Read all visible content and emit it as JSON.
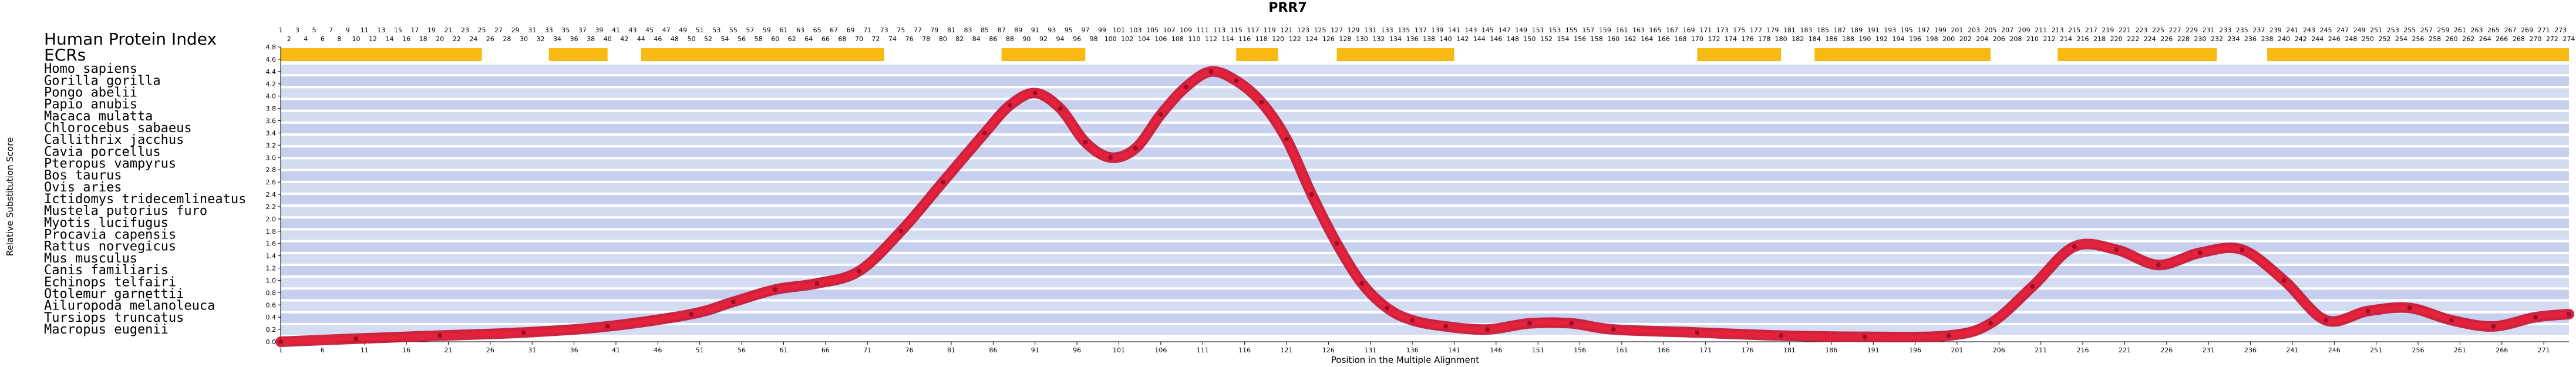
{
  "chart_data": {
    "type": "line",
    "title": "PRR7",
    "xlabel": "Position in the Multiple Alignment",
    "ylabel": "Relative Substitution Score",
    "xlim": [
      1,
      274
    ],
    "ylim": [
      0,
      4.8
    ],
    "y_ticks": [
      "0.0",
      "0.2",
      "0.4",
      "0.6",
      "0.8",
      "1.0",
      "1.2",
      "1.4",
      "1.6",
      "1.8",
      "2.0",
      "2.2",
      "2.4",
      "2.6",
      "2.8",
      "3.0",
      "3.2",
      "3.4",
      "3.6",
      "3.8",
      "4.0",
      "4.2",
      "4.4",
      "4.6",
      "4.8"
    ],
    "x_ticks": [
      1,
      6,
      11,
      16,
      21,
      26,
      31,
      36,
      41,
      46,
      51,
      56,
      61,
      66,
      71,
      76,
      81,
      86,
      91,
      96,
      101,
      106,
      111,
      116,
      121,
      126,
      131,
      136,
      141,
      146,
      151,
      156,
      161,
      166,
      171,
      176,
      181,
      186,
      191,
      196,
      201,
      206,
      211,
      216,
      221,
      226,
      231,
      236,
      241,
      246,
      251,
      256,
      261,
      266,
      271
    ],
    "header_labels": {
      "index": "Human Protein Index",
      "ecrs": "ECRs"
    },
    "species": [
      "Homo sapiens",
      "Gorilla gorilla",
      "Pongo abelii",
      "Papio anubis",
      "Macaca mulatta",
      "Chlorocebus sabaeus",
      "Callithrix jacchus",
      "Cavia porcellus",
      "Pteropus vampyrus",
      "Bos taurus",
      "Ovis aries",
      "Ictidomys tridecemlineatus",
      "Mustela putorius furo",
      "Myotis lucifugus",
      "Procavia capensis",
      "Rattus norvegicus",
      "Mus musculus",
      "Canis familiaris",
      "Echinops telfairi",
      "Otolemur garnettii",
      "Ailuropoda melanoleuca",
      "Tursiops truncatus",
      "Macropus eugenii"
    ],
    "ecr_regions": [
      [
        1,
        25
      ],
      [
        33,
        40
      ],
      [
        44,
        73
      ],
      [
        87,
        97
      ],
      [
        115,
        120
      ],
      [
        127,
        141
      ],
      [
        170,
        180
      ],
      [
        184,
        205
      ],
      [
        213,
        232
      ],
      [
        238,
        274
      ]
    ],
    "series": [
      {
        "name": "",
        "x": [
          1,
          10,
          20,
          30,
          40,
          50,
          55,
          60,
          65,
          70,
          75,
          80,
          85,
          88,
          91,
          94,
          97,
          100,
          103,
          106,
          109,
          112,
          115,
          118,
          121,
          124,
          127,
          130,
          133,
          136,
          140,
          145,
          150,
          155,
          160,
          170,
          180,
          190,
          200,
          205,
          210,
          215,
          220,
          225,
          230,
          235,
          240,
          245,
          250,
          255,
          260,
          265,
          270,
          274
        ],
        "y": [
          0.0,
          0.05,
          0.1,
          0.15,
          0.25,
          0.45,
          0.65,
          0.85,
          0.95,
          1.15,
          1.8,
          2.6,
          3.4,
          3.85,
          4.05,
          3.8,
          3.25,
          3.0,
          3.15,
          3.7,
          4.15,
          4.4,
          4.25,
          3.9,
          3.3,
          2.4,
          1.6,
          0.95,
          0.55,
          0.35,
          0.25,
          0.2,
          0.3,
          0.3,
          0.2,
          0.15,
          0.1,
          0.08,
          0.1,
          0.3,
          0.9,
          1.55,
          1.5,
          1.25,
          1.45,
          1.5,
          1.0,
          0.35,
          0.5,
          0.55,
          0.35,
          0.25,
          0.4,
          0.45
        ]
      }
    ]
  }
}
